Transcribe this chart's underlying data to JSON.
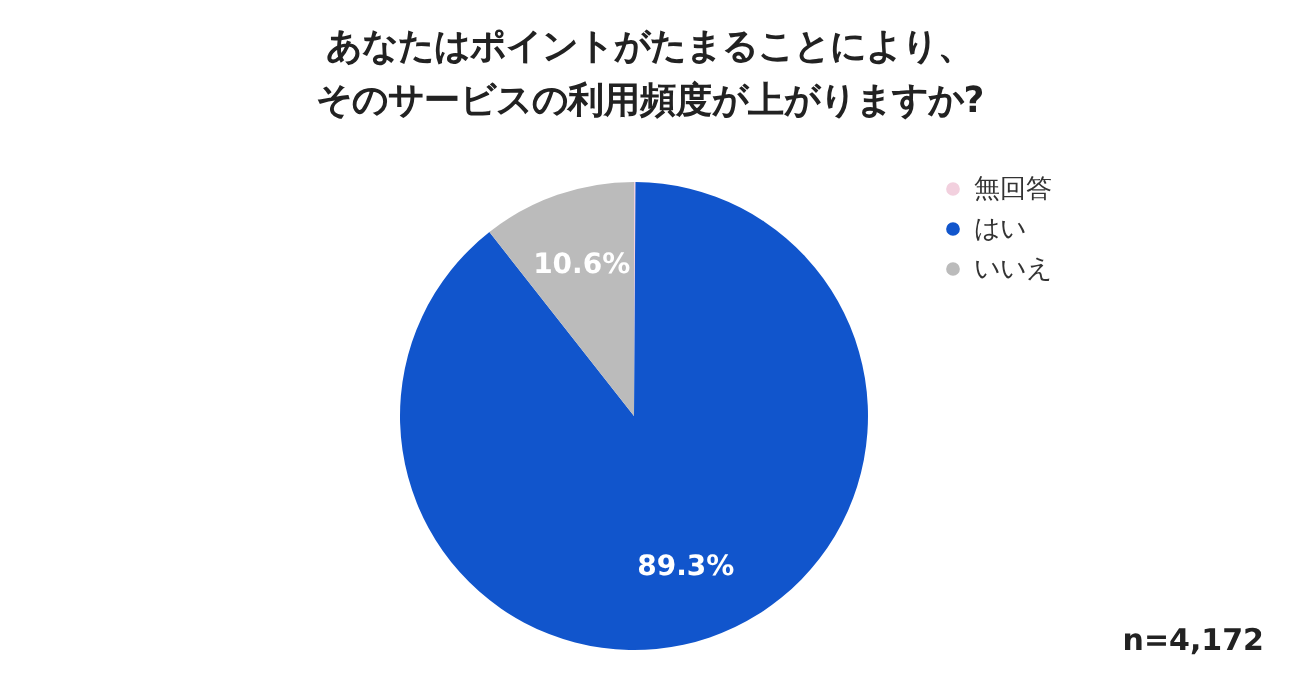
{
  "chart_data": {
    "type": "pie",
    "title": "あなたはポイントがたまることにより、そのサービスの利用頻度が上がりますか?",
    "categories": [
      "無回答",
      "はい",
      "いいえ"
    ],
    "values": [
      0.1,
      89.3,
      10.6
    ],
    "colors": [
      "#f2d0de",
      "#1155cc",
      "#bbbbbb"
    ],
    "value_labels": [
      null,
      "89.3%",
      "10.6%"
    ],
    "legend": "right",
    "annotations": [
      "n=4,172"
    ]
  }
}
